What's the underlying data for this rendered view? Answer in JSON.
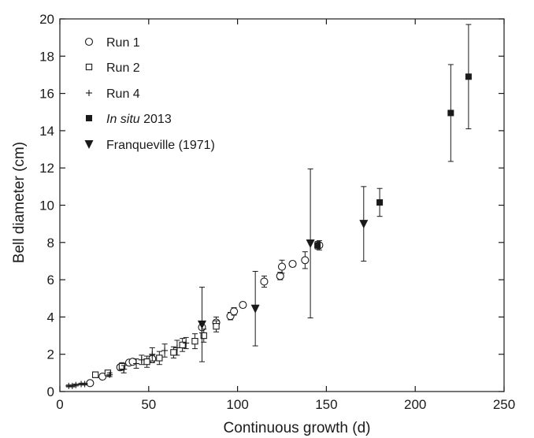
{
  "chart_data": {
    "type": "scatter",
    "xlabel": "Continuous growth (d)",
    "ylabel": "Bell diameter (cm)",
    "xlim": [
      0,
      250
    ],
    "ylim": [
      0,
      20
    ],
    "xticks": [
      0,
      50,
      100,
      150,
      200,
      250
    ],
    "yticks": [
      0,
      2,
      4,
      6,
      8,
      10,
      12,
      14,
      16,
      18,
      20
    ],
    "grid": false,
    "legend_position": "top-left",
    "series": [
      {
        "name": "Run 1",
        "marker": "circle",
        "points": [
          {
            "x": 17,
            "y": 0.45,
            "err": 0.1
          },
          {
            "x": 24,
            "y": 0.8,
            "err": 0.1
          },
          {
            "x": 34,
            "y": 1.3,
            "err": 0.15
          },
          {
            "x": 39,
            "y": 1.55,
            "err": 0.1
          },
          {
            "x": 41,
            "y": 1.6,
            "err": 0.1
          },
          {
            "x": 52,
            "y": 1.75,
            "err": 0.2
          },
          {
            "x": 80,
            "y": 3.45,
            "err": 0.3
          },
          {
            "x": 88,
            "y": 3.7,
            "err": 0.3
          },
          {
            "x": 96,
            "y": 4.05,
            "err": 0.2
          },
          {
            "x": 98,
            "y": 4.3,
            "err": 0.2
          },
          {
            "x": 103,
            "y": 4.65,
            "err": 0.15
          },
          {
            "x": 115,
            "y": 5.9,
            "err": 0.3
          },
          {
            "x": 124,
            "y": 6.2,
            "err": 0.2
          },
          {
            "x": 125,
            "y": 6.7,
            "err": 0.35
          },
          {
            "x": 131,
            "y": 6.85,
            "err": 0.15
          },
          {
            "x": 138,
            "y": 7.05,
            "err": 0.45
          },
          {
            "x": 146,
            "y": 7.85,
            "err": 0.25
          }
        ]
      },
      {
        "name": "Run 2",
        "marker": "square",
        "points": [
          {
            "x": 20,
            "y": 0.9,
            "err": 0.15
          },
          {
            "x": 27,
            "y": 1.0,
            "err": 0.1
          },
          {
            "x": 35,
            "y": 1.35,
            "err": 0.2
          },
          {
            "x": 49,
            "y": 1.6,
            "err": 0.3
          },
          {
            "x": 56,
            "y": 1.8,
            "err": 0.35
          },
          {
            "x": 64,
            "y": 2.1,
            "err": 0.3
          },
          {
            "x": 69,
            "y": 2.5,
            "err": 0.35
          },
          {
            "x": 76,
            "y": 2.7,
            "err": 0.4
          },
          {
            "x": 81,
            "y": 3.0,
            "err": 0.35
          },
          {
            "x": 88,
            "y": 3.5,
            "err": 0.3
          }
        ]
      },
      {
        "name": "Run 4",
        "marker": "plus",
        "points": [
          {
            "x": 5,
            "y": 0.3,
            "err": 0.05
          },
          {
            "x": 7,
            "y": 0.3,
            "err": 0.05
          },
          {
            "x": 9,
            "y": 0.35,
            "err": 0.05
          },
          {
            "x": 12,
            "y": 0.4,
            "err": 0.05
          },
          {
            "x": 14,
            "y": 0.4,
            "err": 0.05
          },
          {
            "x": 28,
            "y": 0.9,
            "err": 0.1
          },
          {
            "x": 36,
            "y": 1.2,
            "err": 0.2
          },
          {
            "x": 43,
            "y": 1.5,
            "err": 0.25
          },
          {
            "x": 46,
            "y": 1.7,
            "err": 0.25
          },
          {
            "x": 52,
            "y": 2.0,
            "err": 0.35
          },
          {
            "x": 59,
            "y": 2.2,
            "err": 0.35
          },
          {
            "x": 66,
            "y": 2.35,
            "err": 0.4
          },
          {
            "x": 71,
            "y": 2.6,
            "err": 0.3
          }
        ]
      },
      {
        "name": "In situ 2013",
        "marker": "filled-square",
        "points": [
          {
            "x": 145,
            "y": 7.85,
            "err": 0.2
          },
          {
            "x": 180,
            "y": 10.15,
            "err": 0.75
          },
          {
            "x": 220,
            "y": 14.95,
            "err": 2.6
          },
          {
            "x": 230,
            "y": 16.9,
            "err": 2.8
          }
        ]
      },
      {
        "name": "Franqueville (1971)",
        "marker": "filled-triangle-down",
        "points": [
          {
            "x": 80,
            "y": 3.6,
            "err": 2.0
          },
          {
            "x": 110,
            "y": 4.45,
            "err": 2.0
          },
          {
            "x": 141,
            "y": 7.95,
            "err": 4.0
          },
          {
            "x": 171,
            "y": 9.0,
            "err": 2.0
          }
        ]
      }
    ]
  },
  "legend": {
    "items": [
      {
        "marker": "circle",
        "label": "Run 1"
      },
      {
        "marker": "square",
        "label": "Run 2"
      },
      {
        "marker": "plus",
        "label": "Run 4"
      },
      {
        "marker": "filled-square",
        "label_italic": "In situ",
        "label": " 2013"
      },
      {
        "marker": "filled-triangle-down",
        "label": "Franqueville (1971)"
      }
    ]
  }
}
